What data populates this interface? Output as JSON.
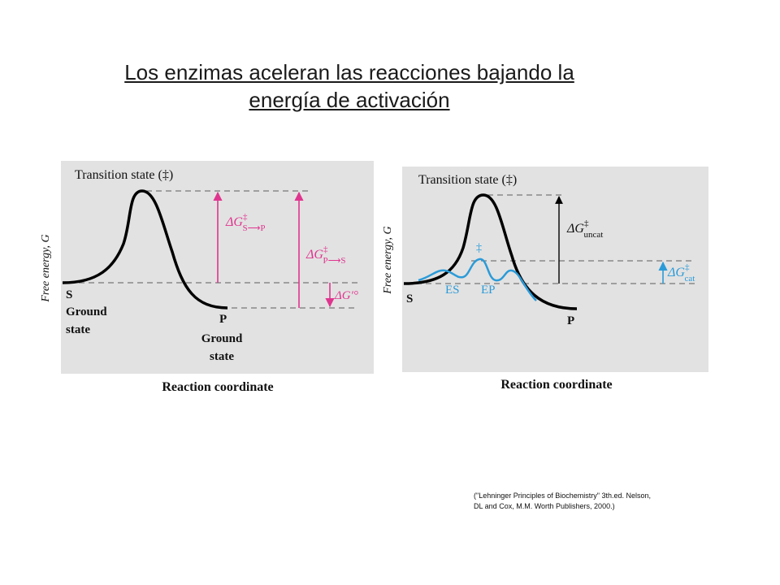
{
  "title": {
    "line1": "Los enzimas aceleran las reacciones bajando la",
    "line2": "energía de activación"
  },
  "colors": {
    "panel_bg": "#e2e2e2",
    "magenta": "#e0358f",
    "blue": "#2b9bd8",
    "dash": "#777777",
    "curve": "#000000"
  },
  "left_diagram": {
    "transition_state": "Transition state (‡)",
    "y_axis": "Free energy, G",
    "x_axis": "Reaction coordinate",
    "s_label": "S",
    "s_ground_1": "Ground",
    "s_ground_2": "state",
    "p_label": "P",
    "p_ground_1": "Ground",
    "p_ground_2": "state",
    "dg_s_p": {
      "base": "ΔG",
      "sup": "‡",
      "sub": "S⟶P"
    },
    "dg_p_s": {
      "base": "ΔG",
      "sup": "‡",
      "sub": "P⟶S"
    },
    "dg_std": "ΔG′°"
  },
  "right_diagram": {
    "transition_state": "Transition state (‡)",
    "y_axis": "Free energy, G",
    "x_axis": "Reaction coordinate",
    "s_label": "S",
    "p_label": "P",
    "es_label": "ES",
    "ep_label": "EP",
    "dagger": "‡",
    "dg_uncat": {
      "base": "ΔG",
      "sup": "‡",
      "sub": "uncat"
    },
    "dg_cat": {
      "base": "ΔG",
      "sup": "‡",
      "sub": "cat"
    }
  },
  "citation": {
    "line1": "(\"Lehninger Principles of Biochemistry\" 3th.ed. Nelson,",
    "line2": "DL and  Cox, M.M. Worth Publishers, 2000.)"
  }
}
